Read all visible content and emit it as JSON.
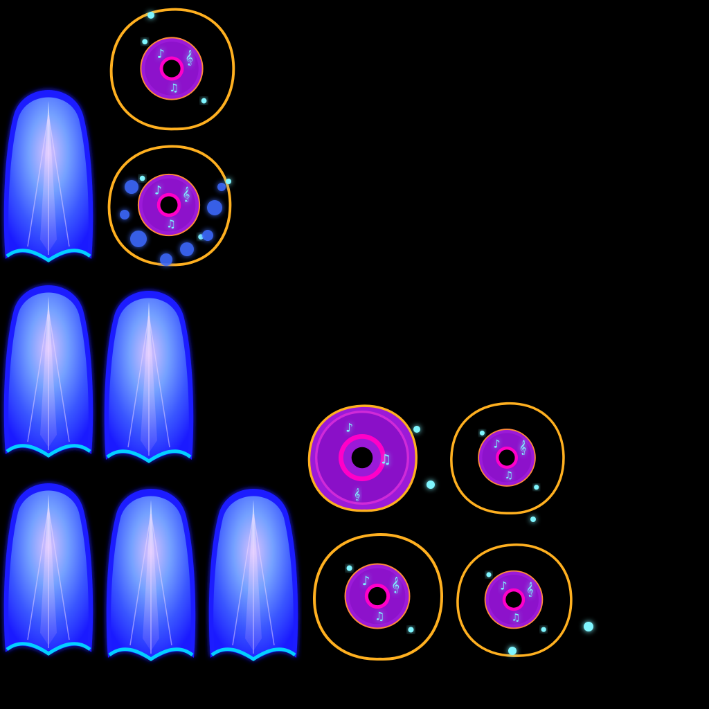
{
  "sprite_sheet": {
    "background_color": "#000000",
    "beam_frame_count": 6,
    "ring_frame_count": 6,
    "colors": {
      "beam_outer": "#1a1aff",
      "beam_core": "#a8d8ff",
      "beam_edge": "#00f0ff",
      "ring_fill": "#9b1ad8",
      "ring_hole": "#ff00c8",
      "ring_outline": "#ffb020",
      "sparkle": "#7ff6ff"
    },
    "icons": [
      "music-note-icon",
      "treble-clef-icon",
      "sparkle-icon"
    ]
  }
}
